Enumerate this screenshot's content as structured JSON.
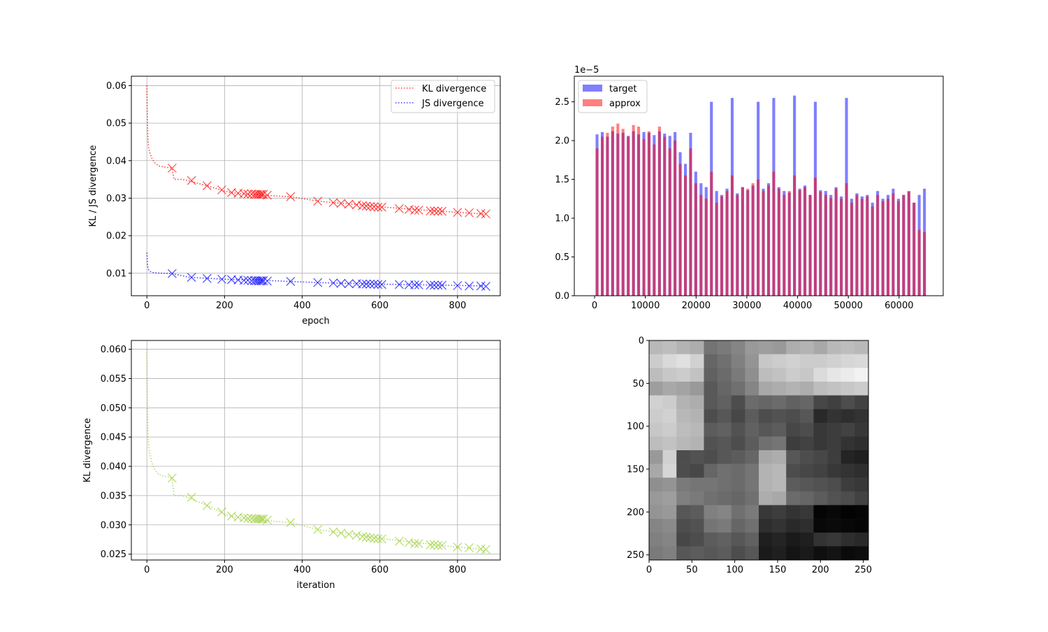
{
  "chart_data": [
    {
      "type": "line",
      "xlabel": "epoch",
      "ylabel": "KL / JS divergence",
      "xlim": [
        -40,
        910
      ],
      "ylim": [
        0.004,
        0.0625
      ],
      "xticks": [
        0,
        200,
        400,
        600,
        800
      ],
      "yticks": [
        0.01,
        0.02,
        0.03,
        0.04,
        0.05,
        0.06
      ],
      "ytick_labels": [
        "0.01",
        "0.02",
        "0.03",
        "0.04",
        "0.05",
        "0.06"
      ],
      "grid": true,
      "legend": "top-right",
      "series": [
        {
          "name": "KL divergence",
          "color": "#ff0000",
          "line_x": [
            0,
            1,
            2,
            3,
            4,
            5,
            6,
            8,
            10,
            12,
            15,
            20,
            30,
            45,
            60,
            65,
            70,
            90,
            110,
            130,
            155,
            175,
            195,
            215,
            235,
            255,
            275,
            285,
            295,
            305,
            330,
            370,
            400,
            440,
            470,
            490,
            510,
            530,
            550,
            570,
            590,
            610,
            640,
            660,
            690,
            700,
            720,
            740,
            760,
            800,
            820,
            850,
            870
          ],
          "line_y": [
            0.06,
            0.052,
            0.048,
            0.0455,
            0.044,
            0.0433,
            0.0428,
            0.042,
            0.0414,
            0.0408,
            0.0402,
            0.0395,
            0.0386,
            0.0383,
            0.0381,
            0.0378,
            0.035,
            0.035,
            0.0346,
            0.034,
            0.0333,
            0.0327,
            0.032,
            0.0315,
            0.0313,
            0.0311,
            0.031,
            0.031,
            0.0309,
            0.0308,
            0.0306,
            0.0304,
            0.0299,
            0.0292,
            0.0289,
            0.0287,
            0.0286,
            0.0284,
            0.0282,
            0.028,
            0.0278,
            0.0276,
            0.0274,
            0.0272,
            0.027,
            0.0269,
            0.0268,
            0.0266,
            0.0265,
            0.0262,
            0.0261,
            0.0259,
            0.0257
          ],
          "markers_x": [
            65,
            115,
            155,
            193,
            218,
            235,
            250,
            260,
            270,
            277,
            282,
            287,
            292,
            296,
            300,
            310,
            370,
            440,
            480,
            500,
            520,
            540,
            555,
            565,
            575,
            585,
            595,
            605,
            650,
            675,
            690,
            700,
            730,
            740,
            750,
            760,
            800,
            830,
            860,
            873
          ],
          "markers_y": [
            0.038,
            0.0347,
            0.0333,
            0.0322,
            0.0315,
            0.0313,
            0.0312,
            0.0311,
            0.0311,
            0.031,
            0.031,
            0.031,
            0.031,
            0.031,
            0.031,
            0.0308,
            0.0304,
            0.0292,
            0.0288,
            0.0286,
            0.0284,
            0.0282,
            0.028,
            0.0279,
            0.0278,
            0.0277,
            0.0276,
            0.0276,
            0.0272,
            0.027,
            0.0268,
            0.0268,
            0.0266,
            0.0266,
            0.0265,
            0.0265,
            0.0262,
            0.0261,
            0.0259,
            0.0258
          ]
        },
        {
          "name": "JS divergence",
          "color": "#0000ff",
          "line_x": [
            0,
            1,
            2,
            3,
            5,
            8,
            12,
            20,
            40,
            65,
            110,
            200,
            300,
            440,
            600,
            870
          ],
          "line_y": [
            0.0155,
            0.0135,
            0.012,
            0.0112,
            0.0108,
            0.0105,
            0.0103,
            0.0101,
            0.01,
            0.0099,
            0.0089,
            0.0084,
            0.0081,
            0.0075,
            0.0071,
            0.0066
          ],
          "markers_x": [
            65,
            115,
            155,
            193,
            218,
            235,
            250,
            260,
            270,
            277,
            282,
            287,
            292,
            296,
            300,
            310,
            370,
            440,
            480,
            500,
            520,
            540,
            555,
            565,
            575,
            585,
            595,
            605,
            650,
            675,
            690,
            700,
            730,
            740,
            750,
            760,
            800,
            830,
            860,
            873
          ],
          "markers_y": [
            0.0099,
            0.0089,
            0.0086,
            0.0084,
            0.0083,
            0.0082,
            0.0081,
            0.0081,
            0.008,
            0.008,
            0.008,
            0.008,
            0.008,
            0.008,
            0.008,
            0.0079,
            0.0078,
            0.0075,
            0.0074,
            0.0073,
            0.0072,
            0.0072,
            0.0071,
            0.0071,
            0.0071,
            0.0071,
            0.007,
            0.007,
            0.007,
            0.0069,
            0.0069,
            0.0069,
            0.0068,
            0.0068,
            0.0068,
            0.0068,
            0.0067,
            0.0066,
            0.0066,
            0.0065
          ]
        }
      ]
    },
    {
      "type": "bar",
      "title": "",
      "offset_text": "1e−5",
      "xlim": [
        -4000,
        68700
      ],
      "ylim": [
        0,
        2.83
      ],
      "xticks": [
        0,
        10000,
        20000,
        30000,
        40000,
        50000,
        60000
      ],
      "yticks": [
        0.0,
        0.5,
        1.0,
        1.5,
        2.0,
        2.5
      ],
      "ytick_labels": [
        "0.0",
        "0.5",
        "1.0",
        "1.5",
        "2.0",
        "2.5"
      ],
      "legend": "top-left",
      "series": [
        {
          "name": "target",
          "color": "#0000ff",
          "alpha": 0.5,
          "values_sampled": [
            2.08,
            2.11,
            2.05,
            2.12,
            2.09,
            2.1,
            2.06,
            2.12,
            2.08,
            2.11,
            2.1,
            2.07,
            2.12,
            2.09,
            2.06,
            2.11,
            1.85,
            1.7,
            2.1,
            1.6,
            1.45,
            1.4,
            2.5,
            1.35,
            1.3,
            1.38,
            2.55,
            1.32,
            1.4,
            1.36,
            1.42,
            2.5,
            1.38,
            1.45,
            2.55,
            1.4,
            1.35,
            1.33,
            2.58,
            1.38,
            1.42,
            1.3,
            2.5,
            1.36,
            1.35,
            1.3,
            1.4,
            1.28,
            2.55,
            1.25,
            1.32,
            1.28,
            1.3,
            1.2,
            1.35,
            1.25,
            1.3,
            1.38,
            1.25,
            1.3,
            1.35,
            1.2,
            1.3,
            1.38
          ]
        },
        {
          "name": "approx",
          "color": "#ff0000",
          "alpha": 0.5,
          "values_sampled": [
            1.9,
            2.05,
            2.1,
            2.18,
            2.22,
            2.15,
            2.05,
            2.2,
            2.18,
            2.02,
            2.12,
            1.95,
            2.18,
            2.05,
            1.9,
            2.0,
            1.7,
            1.55,
            1.9,
            1.45,
            1.3,
            1.25,
            1.6,
            1.2,
            1.28,
            1.35,
            1.55,
            1.3,
            1.4,
            1.38,
            1.45,
            1.5,
            1.35,
            1.42,
            1.6,
            1.38,
            1.3,
            1.35,
            1.55,
            1.36,
            1.4,
            1.3,
            1.52,
            1.34,
            1.3,
            1.26,
            1.38,
            1.25,
            1.45,
            1.2,
            1.3,
            1.25,
            1.28,
            1.15,
            1.3,
            1.22,
            1.25,
            1.32,
            1.22,
            1.3,
            1.34,
            1.2,
            0.85,
            0.82
          ]
        }
      ]
    },
    {
      "type": "line",
      "xlabel": "iteration",
      "ylabel": "KL divergence",
      "xlim": [
        -40,
        910
      ],
      "ylim": [
        0.024,
        0.0615
      ],
      "xticks": [
        0,
        200,
        400,
        600,
        800
      ],
      "yticks": [
        0.025,
        0.03,
        0.035,
        0.04,
        0.045,
        0.05,
        0.055,
        0.06
      ],
      "ytick_labels": [
        "0.025",
        "0.030",
        "0.035",
        "0.040",
        "0.045",
        "0.050",
        "0.055",
        "0.060"
      ],
      "grid": true,
      "series": [
        {
          "color": "#9acd32",
          "line_x": [
            0,
            1,
            2,
            3,
            4,
            5,
            6,
            8,
            10,
            12,
            15,
            20,
            30,
            45,
            60,
            65,
            70,
            90,
            110,
            130,
            155,
            175,
            195,
            215,
            235,
            255,
            275,
            285,
            295,
            305,
            330,
            370,
            400,
            440,
            470,
            490,
            510,
            530,
            550,
            570,
            590,
            610,
            640,
            660,
            690,
            700,
            720,
            740,
            760,
            800,
            820,
            850,
            870
          ],
          "line_y": [
            0.06,
            0.052,
            0.048,
            0.0455,
            0.044,
            0.0433,
            0.0428,
            0.042,
            0.0414,
            0.0408,
            0.0402,
            0.0395,
            0.0386,
            0.0383,
            0.0381,
            0.0378,
            0.035,
            0.035,
            0.0346,
            0.034,
            0.0333,
            0.0327,
            0.032,
            0.0315,
            0.0313,
            0.0311,
            0.031,
            0.031,
            0.0309,
            0.0308,
            0.0306,
            0.0304,
            0.0299,
            0.0292,
            0.0289,
            0.0287,
            0.0286,
            0.0284,
            0.0282,
            0.028,
            0.0278,
            0.0276,
            0.0274,
            0.0272,
            0.027,
            0.0269,
            0.0268,
            0.0266,
            0.0265,
            0.0262,
            0.0261,
            0.0259,
            0.0257
          ],
          "markers_x": [
            65,
            115,
            155,
            193,
            218,
            235,
            250,
            260,
            270,
            277,
            282,
            287,
            292,
            296,
            300,
            310,
            370,
            440,
            480,
            500,
            520,
            540,
            555,
            565,
            575,
            585,
            595,
            605,
            650,
            675,
            690,
            700,
            730,
            740,
            750,
            760,
            800,
            830,
            860,
            873
          ],
          "markers_y": [
            0.038,
            0.0347,
            0.0333,
            0.0322,
            0.0315,
            0.0313,
            0.0312,
            0.0311,
            0.0311,
            0.031,
            0.031,
            0.031,
            0.031,
            0.031,
            0.031,
            0.0308,
            0.0304,
            0.0292,
            0.0288,
            0.0286,
            0.0284,
            0.0282,
            0.028,
            0.0279,
            0.0278,
            0.0277,
            0.0276,
            0.0276,
            0.0272,
            0.027,
            0.0268,
            0.0268,
            0.0266,
            0.0266,
            0.0265,
            0.0265,
            0.0262,
            0.0261,
            0.0259,
            0.0258
          ]
        }
      ]
    },
    {
      "type": "heatmap",
      "colormap": "gray",
      "xlim": [
        0,
        256
      ],
      "ylim": [
        256,
        0
      ],
      "xticks": [
        0,
        50,
        100,
        150,
        200,
        250
      ],
      "yticks": [
        0,
        50,
        100,
        150,
        200,
        250
      ],
      "grid_values": [
        [
          0.72,
          0.74,
          0.7,
          0.68,
          0.45,
          0.48,
          0.52,
          0.6,
          0.62,
          0.6,
          0.68,
          0.7,
          0.66,
          0.72,
          0.74,
          0.72
        ],
        [
          0.8,
          0.85,
          0.88,
          0.82,
          0.4,
          0.44,
          0.5,
          0.58,
          0.78,
          0.8,
          0.82,
          0.8,
          0.8,
          0.82,
          0.84,
          0.85
        ],
        [
          0.74,
          0.78,
          0.8,
          0.76,
          0.38,
          0.42,
          0.48,
          0.56,
          0.74,
          0.76,
          0.8,
          0.78,
          0.86,
          0.9,
          0.92,
          0.95
        ],
        [
          0.62,
          0.66,
          0.64,
          0.6,
          0.35,
          0.4,
          0.44,
          0.52,
          0.66,
          0.68,
          0.7,
          0.68,
          0.74,
          0.76,
          0.78,
          0.8
        ],
        [
          0.82,
          0.8,
          0.7,
          0.68,
          0.35,
          0.38,
          0.3,
          0.42,
          0.4,
          0.42,
          0.38,
          0.4,
          0.28,
          0.25,
          0.3,
          0.26
        ],
        [
          0.8,
          0.82,
          0.72,
          0.7,
          0.3,
          0.34,
          0.28,
          0.36,
          0.3,
          0.32,
          0.3,
          0.34,
          0.16,
          0.2,
          0.18,
          0.2
        ],
        [
          0.78,
          0.8,
          0.74,
          0.72,
          0.36,
          0.38,
          0.32,
          0.38,
          0.34,
          0.36,
          0.28,
          0.3,
          0.22,
          0.24,
          0.26,
          0.22
        ],
        [
          0.74,
          0.76,
          0.72,
          0.7,
          0.32,
          0.34,
          0.3,
          0.36,
          0.44,
          0.46,
          0.24,
          0.26,
          0.22,
          0.24,
          0.2,
          0.18
        ],
        [
          0.6,
          0.82,
          0.3,
          0.32,
          0.3,
          0.34,
          0.36,
          0.4,
          0.66,
          0.68,
          0.34,
          0.3,
          0.28,
          0.24,
          0.14,
          0.12
        ],
        [
          0.66,
          0.84,
          0.3,
          0.28,
          0.4,
          0.44,
          0.42,
          0.46,
          0.7,
          0.72,
          0.3,
          0.28,
          0.26,
          0.22,
          0.2,
          0.18
        ],
        [
          0.56,
          0.58,
          0.48,
          0.46,
          0.46,
          0.44,
          0.42,
          0.46,
          0.7,
          0.72,
          0.36,
          0.34,
          0.32,
          0.3,
          0.24,
          0.22
        ],
        [
          0.6,
          0.62,
          0.5,
          0.48,
          0.44,
          0.42,
          0.4,
          0.44,
          0.68,
          0.66,
          0.42,
          0.4,
          0.36,
          0.32,
          0.3,
          0.26
        ],
        [
          0.58,
          0.6,
          0.34,
          0.36,
          0.5,
          0.52,
          0.44,
          0.48,
          0.22,
          0.24,
          0.2,
          0.22,
          0.02,
          0.03,
          0.01,
          0.02
        ],
        [
          0.52,
          0.54,
          0.3,
          0.32,
          0.46,
          0.48,
          0.4,
          0.44,
          0.18,
          0.2,
          0.16,
          0.18,
          0.03,
          0.04,
          0.03,
          0.02
        ],
        [
          0.5,
          0.52,
          0.28,
          0.3,
          0.36,
          0.38,
          0.34,
          0.38,
          0.12,
          0.14,
          0.1,
          0.12,
          0.2,
          0.22,
          0.18,
          0.16
        ],
        [
          0.48,
          0.5,
          0.34,
          0.36,
          0.34,
          0.36,
          0.3,
          0.34,
          0.1,
          0.12,
          0.08,
          0.1,
          0.06,
          0.08,
          0.04,
          0.05
        ]
      ]
    }
  ]
}
